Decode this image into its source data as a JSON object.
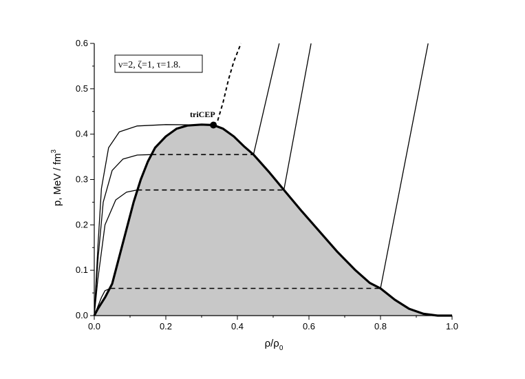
{
  "chart_data": {
    "type": "area",
    "xlabel": "ρ/ρ",
    "xlabel_sub": "0",
    "ylabel": "p, MeV / fm",
    "ylabel_sup": "3",
    "xlim": [
      0.0,
      1.0
    ],
    "ylim": [
      0.0,
      0.6
    ],
    "xticks": [
      0.0,
      0.2,
      0.4,
      0.6,
      0.8,
      1.0
    ],
    "xtick_labels": [
      "0.0",
      "0.2",
      "0.4",
      "0.6",
      "0.8",
      "1.0"
    ],
    "yticks": [
      0.0,
      0.1,
      0.2,
      0.3,
      0.4,
      0.5,
      0.6
    ],
    "ytick_labels": [
      "0.0",
      "0.1",
      "0.2",
      "0.3",
      "0.4",
      "0.5",
      "0.6"
    ],
    "legend_text": "ν=2, ζ=1, τ=1.8.",
    "annotation": {
      "text": "triCEP",
      "point": [
        0.333,
        0.42
      ]
    },
    "shaded_region_boundary": [
      [
        0.0,
        0.0
      ],
      [
        0.01,
        0.015
      ],
      [
        0.03,
        0.04
      ],
      [
        0.05,
        0.07
      ],
      [
        0.07,
        0.13
      ],
      [
        0.09,
        0.19
      ],
      [
        0.11,
        0.25
      ],
      [
        0.13,
        0.3
      ],
      [
        0.15,
        0.34
      ],
      [
        0.17,
        0.37
      ],
      [
        0.2,
        0.395
      ],
      [
        0.23,
        0.412
      ],
      [
        0.26,
        0.419
      ],
      [
        0.3,
        0.421
      ],
      [
        0.333,
        0.42
      ],
      [
        0.36,
        0.412
      ],
      [
        0.39,
        0.395
      ],
      [
        0.42,
        0.372
      ],
      [
        0.445,
        0.355
      ],
      [
        0.49,
        0.315
      ],
      [
        0.53,
        0.277
      ],
      [
        0.58,
        0.23
      ],
      [
        0.63,
        0.185
      ],
      [
        0.68,
        0.14
      ],
      [
        0.73,
        0.1
      ],
      [
        0.77,
        0.072
      ],
      [
        0.8,
        0.06
      ],
      [
        0.84,
        0.035
      ],
      [
        0.88,
        0.015
      ],
      [
        0.92,
        0.004
      ],
      [
        0.96,
        0.0
      ],
      [
        1.0,
        0.0
      ]
    ],
    "series": [
      {
        "values": [
          [
            0.0,
            0.0
          ],
          [
            0.01,
            0.15
          ],
          [
            0.02,
            0.28
          ],
          [
            0.04,
            0.37
          ],
          [
            0.07,
            0.405
          ],
          [
            0.12,
            0.418
          ],
          [
            0.2,
            0.421
          ],
          [
            0.333,
            0.42
          ]
        ]
      },
      {
        "values": [
          [
            0.0,
            0.0
          ],
          [
            0.01,
            0.12
          ],
          [
            0.025,
            0.25
          ],
          [
            0.05,
            0.32
          ],
          [
            0.08,
            0.345
          ],
          [
            0.12,
            0.354
          ],
          [
            0.16,
            0.355
          ]
        ]
      },
      {
        "values": [
          [
            0.0,
            0.0
          ],
          [
            0.01,
            0.08
          ],
          [
            0.03,
            0.2
          ],
          [
            0.06,
            0.255
          ],
          [
            0.09,
            0.272
          ],
          [
            0.12,
            0.277
          ]
        ]
      },
      {
        "values": [
          [
            0.0,
            0.0
          ],
          [
            0.01,
            0.02
          ],
          [
            0.02,
            0.04
          ],
          [
            0.03,
            0.055
          ],
          [
            0.045,
            0.06
          ]
        ]
      },
      {
        "values": [
          [
            0.333,
            0.42
          ],
          [
            0.345,
            0.43
          ],
          [
            0.36,
            0.47
          ],
          [
            0.375,
            0.52
          ],
          [
            0.39,
            0.56
          ],
          [
            0.41,
            0.6
          ]
        ]
      },
      {
        "values": [
          [
            0.445,
            0.355
          ],
          [
            0.517,
            0.6
          ]
        ]
      },
      {
        "values": [
          [
            0.53,
            0.277
          ],
          [
            0.606,
            0.6
          ]
        ]
      },
      {
        "values": [
          [
            0.8,
            0.06
          ],
          [
            0.933,
            0.6
          ]
        ]
      }
    ],
    "tie_lines": [
      {
        "y": 0.355,
        "x1": 0.16,
        "x2": 0.445
      },
      {
        "y": 0.277,
        "x1": 0.12,
        "x2": 0.53
      },
      {
        "y": 0.06,
        "x1": 0.045,
        "x2": 0.8
      }
    ],
    "grid": false
  }
}
